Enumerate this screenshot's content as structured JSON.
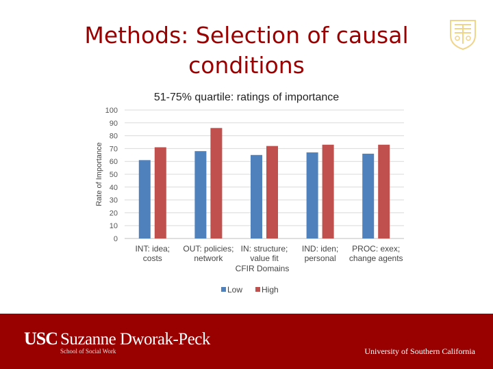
{
  "slide": {
    "title": "Methods: Selection of causal conditions"
  },
  "footer": {
    "usc": "USC",
    "school": "Suzanne Dworak-Peck",
    "sub": "School of Social Work",
    "university": "University of Southern California"
  },
  "colors": {
    "title": "#9a0000",
    "low": "#4f81bd",
    "high": "#c0504d",
    "footer": "#990000",
    "seal": "#f0d48a"
  },
  "chart_data": {
    "type": "bar",
    "title": "51-75% quartile: ratings of importance",
    "xlabel": "CFIR Domains",
    "ylabel": "Rate of Importance",
    "ylim": [
      0,
      100
    ],
    "yticks": [
      0,
      10,
      20,
      30,
      40,
      50,
      60,
      70,
      80,
      90,
      100
    ],
    "grid": true,
    "legend_position": "bottom",
    "categories": [
      [
        "INT: idea;",
        "costs"
      ],
      [
        "OUT: policies;",
        "network"
      ],
      [
        "IN: structure;",
        "value fit"
      ],
      [
        "IND: iden;",
        "personal"
      ],
      [
        "PROC: exex;",
        "change agents"
      ]
    ],
    "series": [
      {
        "name": "Low",
        "values": [
          61,
          68,
          65,
          67,
          66
        ]
      },
      {
        "name": "High",
        "values": [
          71,
          86,
          72,
          73,
          73
        ]
      }
    ]
  }
}
